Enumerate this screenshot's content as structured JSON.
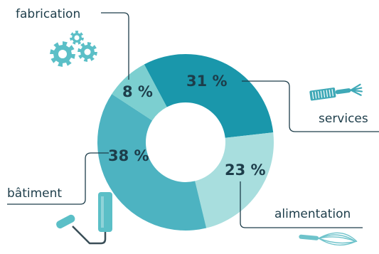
{
  "chart_data": {
    "type": "pie",
    "donut": true,
    "start_angle_deg": -28,
    "slices": [
      {
        "name": "services",
        "value": 31,
        "label": "31 %",
        "color": "#1a97ab"
      },
      {
        "name": "alimentation",
        "value": 23,
        "label": "23 %",
        "color": "#a8dede"
      },
      {
        "name": "bâtiment",
        "value": 38,
        "label": "38 %",
        "color": "#4db3c1"
      },
      {
        "name": "fabrication",
        "value": 8,
        "label": "8 %",
        "color": "#7ccfd0"
      }
    ]
  },
  "icons": {
    "fabrication": "gears-icon",
    "services": "comb-fork-icon",
    "alimentation": "whisk-icon",
    "batiment": "paint-roller-icon"
  },
  "colors": {
    "text": "#1d3d4a",
    "icon": "#5bbfc7"
  }
}
